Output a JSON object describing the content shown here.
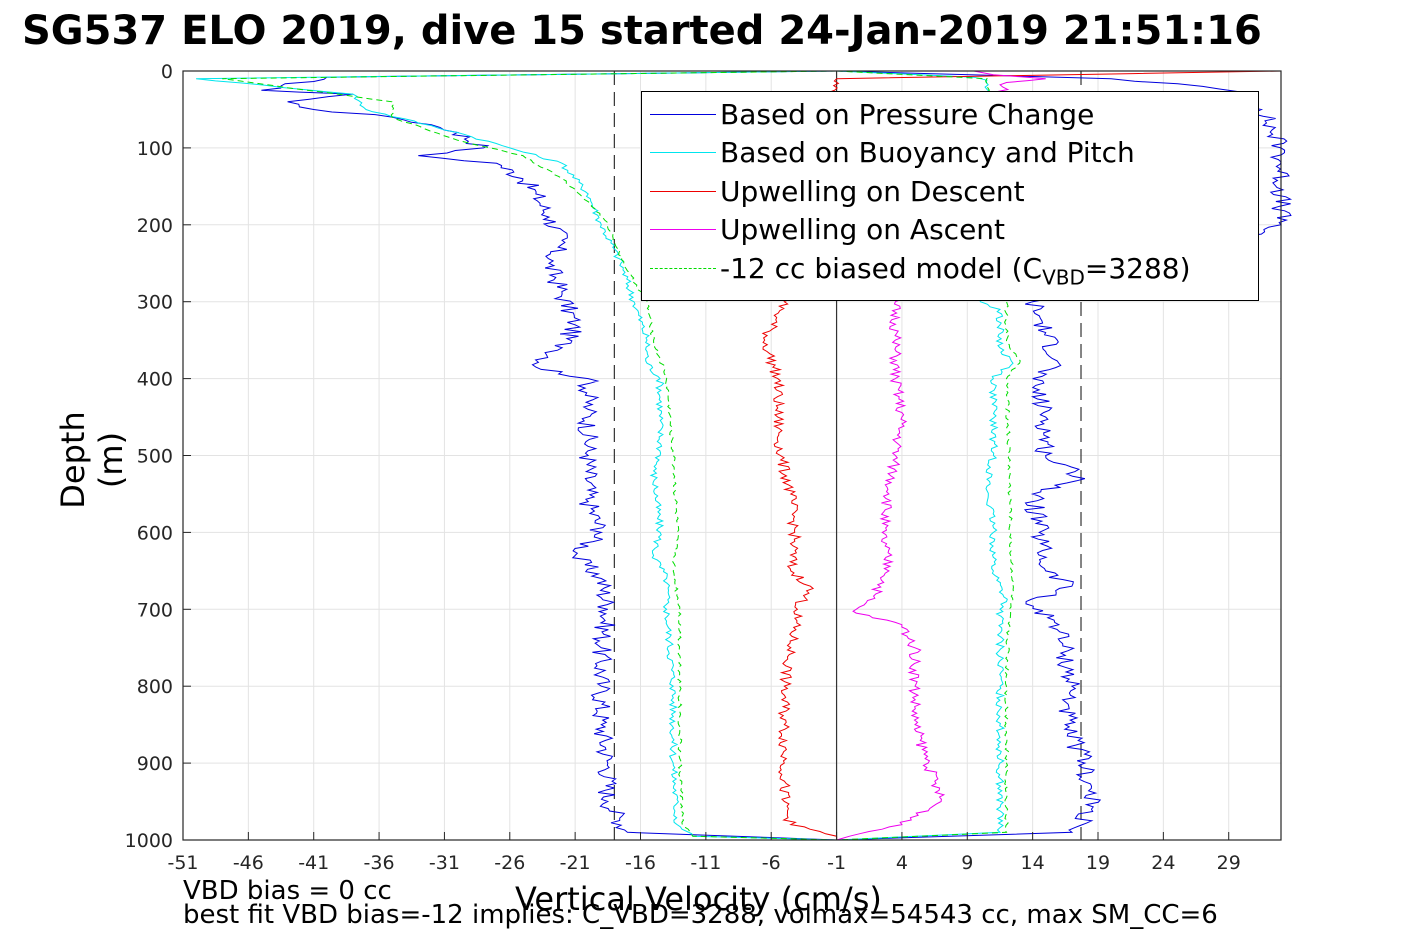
{
  "title": "SG537 ELO 2019, dive 15 started 24-Jan-2019 21:51:16",
  "footer": {
    "line1": "VBD bias = 0 cc",
    "line2": "best fit VBD bias=-12 implies: C_VBD=3288, volmax=54543 cc, max SM_CC=6"
  },
  "chart_data": {
    "type": "line",
    "xlabel": "Vertical Velocity (cm/s)",
    "ylabel": "Depth (m)",
    "xlim": [
      -51,
      33
    ],
    "ylim": [
      1000,
      0
    ],
    "xticks": [
      -51,
      -46,
      -41,
      -36,
      -31,
      -26,
      -21,
      -16,
      -11,
      -6,
      -1,
      4,
      9,
      14,
      19,
      24,
      29
    ],
    "yticks": [
      0,
      100,
      200,
      300,
      400,
      500,
      600,
      700,
      800,
      900,
      1000
    ],
    "grid": true,
    "legend_position": "top-right",
    "reference_lines": {
      "vertical_solid": [
        -1
      ],
      "vertical_dashed": [
        -18,
        17.7
      ]
    },
    "series": [
      {
        "name": "Based on Pressure Change",
        "color": "#0000dd",
        "style": "solid",
        "branches": [
          {
            "depth": [
              0,
              8,
              25,
              30,
              40,
              50,
              60,
              70,
              80,
              100,
              110,
              120,
              140,
              160,
              190,
              220,
              250,
              290,
              330,
              360,
              385,
              400,
              440,
              500,
              560,
              600,
              630,
              660,
              700,
              750,
              800,
              850,
              900,
              950,
              990,
              1000
            ],
            "x": [
              -1,
              -40,
              -45,
              -38,
              -43,
              -41,
              -35,
              -32,
              -30,
              -28,
              -33,
              -27,
              -25,
              -24,
              -23,
              -22,
              -23,
              -22,
              -21,
              -22,
              -24,
              -20,
              -20,
              -20,
              -20,
              -19,
              -21,
              -19,
              -18.5,
              -19,
              -19,
              -19,
              -18.5,
              -18.5,
              -17,
              -1
            ]
          },
          {
            "depth": [
              0,
              10,
              20,
              30,
              50,
              100,
              200,
              300,
              340,
              380,
              400,
              450,
              500,
              530,
              550,
              600,
              650,
              670,
              690,
              720,
              760,
              800,
              850,
              900,
              960,
              990,
              1000
            ],
            "x": [
              -1,
              20,
              27,
              30,
              31.5,
              33,
              33,
              14,
              15,
              16,
              14,
              15,
              15,
              18,
              14,
              14.5,
              15,
              17,
              13.5,
              16,
              16.5,
              17,
              16.5,
              18,
              18.5,
              17,
              -1
            ]
          }
        ]
      },
      {
        "name": "Based on Buoyancy and Pitch",
        "color": "#00e5ee",
        "style": "solid",
        "branches": [
          {
            "depth": [
              0,
              10,
              30,
              50,
              80,
              100,
              120,
              160,
              200,
              250,
              300,
              350,
              380,
              400,
              500,
              520,
              600,
              630,
              660,
              700,
              800,
              900,
              980,
              995,
              1000
            ],
            "x": [
              -1,
              -50,
              -38,
              -37,
              -30,
              -26,
              -22,
              -20,
              -19,
              -17.5,
              -16.5,
              -15.5,
              -15.5,
              -14.5,
              -14.5,
              -15,
              -14.5,
              -15,
              -14,
              -14,
              -13.5,
              -13.5,
              -13.2,
              -12,
              -1
            ]
          },
          {
            "depth": [
              0,
              8,
              12,
              300,
              310,
              360,
              380,
              400,
              500,
              540,
              600,
              650,
              690,
              700,
              800,
              900,
              990,
              1000
            ],
            "x": [
              -1,
              9.5,
              10.5,
              10,
              11.5,
              11.5,
              12.5,
              11,
              11,
              10.5,
              11,
              11,
              12,
              11.5,
              11.5,
              11.5,
              11.5,
              -1
            ]
          }
        ]
      },
      {
        "name": "Upwelling on Descent",
        "color": "#ee0000",
        "style": "solid",
        "branches": [
          {
            "depth": [
              0,
              10,
              300,
              350,
              400,
              450,
              500,
              550,
              600,
              650,
              670,
              700,
              750,
              800,
              850,
              900,
              950,
              980,
              995,
              1000
            ],
            "x": [
              33,
              -1,
              -5,
              -6.5,
              -5.5,
              -5.5,
              -5.3,
              -4.5,
              -4.2,
              -4.5,
              -3,
              -4,
              -4.5,
              -5,
              -5,
              -5,
              -5,
              -4.5,
              -1,
              -1
            ]
          }
        ]
      },
      {
        "name": "Upwelling on Ascent",
        "color": "#ee00ee",
        "style": "solid",
        "branches": [
          {
            "depth": [
              0,
              5,
              10,
              15,
              300,
              350,
              400,
              450,
              500,
              550,
              600,
              650,
              680,
              700,
              705,
              720,
              750,
              800,
              850,
              900,
              950,
              980,
              995,
              1000
            ],
            "x": [
              9.5,
              11,
              15,
              12,
              3.5,
              3.5,
              3.5,
              4,
              3.5,
              3,
              2.5,
              3,
              2,
              0.5,
              0.5,
              4,
              5,
              5,
              5,
              6,
              7,
              4,
              0,
              -1
            ]
          }
        ]
      },
      {
        "name": "-12 cc biased model (C",
        "color": "#00dd00",
        "style": "dashed",
        "branches": [
          {
            "depth": [
              0,
              10,
              40,
              60,
              90,
              110,
              140,
              170,
              200,
              260,
              300,
              350,
              400,
              500,
              600,
              650,
              700,
              800,
              900,
              980,
              995,
              1000
            ],
            "x": [
              -1,
              -48,
              -35,
              -35,
              -30,
              -25,
              -22,
              -20,
              -18.5,
              -17,
              -15.5,
              -15,
              -14,
              -13.5,
              -13.2,
              -13.5,
              -13,
              -13,
              -13,
              -12.8,
              -12,
              -1
            ]
          },
          {
            "depth": [
              0,
              10,
              300,
              350,
              380,
              400,
              500,
              600,
              680,
              700,
              800,
              900,
              990,
              1000
            ],
            "x": [
              -1,
              10.5,
              12,
              12,
              13,
              12,
              12.2,
              12.3,
              12.5,
              12.2,
              12,
              12,
              12,
              -1
            ]
          }
        ]
      }
    ],
    "legend_subscript": "VBD",
    "legend_suffix": "=3288)"
  }
}
